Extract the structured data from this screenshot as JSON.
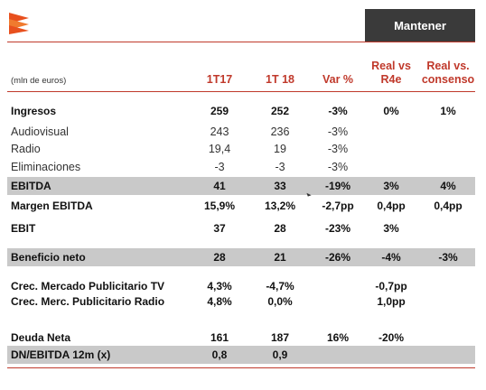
{
  "header": {
    "badge": "Mantener"
  },
  "units": "(mln de euros)",
  "columns": {
    "c1": "1T17",
    "c2": "1T 18",
    "c3": "Var %",
    "c4_line1": "Real vs",
    "c4_line2": "R4e",
    "c5_line1": "Real vs.",
    "c5_line2": "consenso"
  },
  "rows": [
    {
      "label": "Ingresos",
      "c1": "259",
      "c2": "252",
      "c3": "-3%",
      "c4": "0%",
      "c5": "1%"
    },
    {
      "label": "Audiovisual",
      "c1": "243",
      "c2": "236",
      "c3": "-3%",
      "c4": "",
      "c5": ""
    },
    {
      "label": "Radio",
      "c1": "19,4",
      "c2": "19",
      "c3": "-3%",
      "c4": "",
      "c5": ""
    },
    {
      "label": "Eliminaciones",
      "c1": "-3",
      "c2": "-3",
      "c3": "-3%",
      "c4": "",
      "c5": ""
    },
    {
      "label": "EBITDA",
      "c1": "41",
      "c2": "33",
      "c3": "-19%",
      "c4": "3%",
      "c5": "4%"
    },
    {
      "label": "Margen EBITDA",
      "c1": "15,9%",
      "c2": "13,2%",
      "c3": "-2,7pp",
      "c4": "0,4pp",
      "c5": "0,4pp"
    },
    {
      "label": "EBIT",
      "c1": "37",
      "c2": "28",
      "c3": "-23%",
      "c4": "3%",
      "c5": ""
    },
    {
      "label": "Beneficio neto",
      "c1": "28",
      "c2": "21",
      "c3": "-26%",
      "c4": "-4%",
      "c5": "-3%"
    },
    {
      "label": "Crec. Mercado Publicitario TV",
      "c1": "4,3%",
      "c2": "-4,7%",
      "c3": "",
      "c4": "-0,7pp",
      "c5": ""
    },
    {
      "label": "Crec. Merc. Publicitario Radio",
      "c1": "4,8%",
      "c2": "0,0%",
      "c3": "",
      "c4": "1,0pp",
      "c5": ""
    },
    {
      "label": "Deuda Neta",
      "c1": "161",
      "c2": "187",
      "c3": "16%",
      "c4": "-20%",
      "c5": ""
    },
    {
      "label": "DN/EBITDA 12m (x)",
      "c1": "0,8",
      "c2": "0,9",
      "c3": "",
      "c4": "",
      "c5": ""
    }
  ],
  "colors": {
    "accent": "#c0392b",
    "band": "#c9c9c9",
    "badge": "#3a3a3a"
  }
}
